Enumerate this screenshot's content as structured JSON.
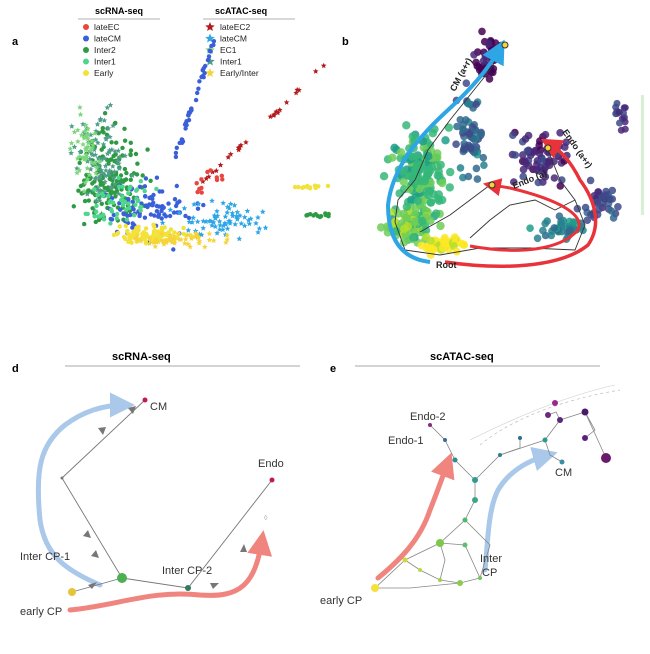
{
  "panels": {
    "a": {
      "label": "a"
    },
    "b": {
      "label": "b"
    },
    "d": {
      "label": "d"
    },
    "e": {
      "label": "e"
    }
  },
  "legend": {
    "scrna_title": "scRNA-seq",
    "scatac_title": "scATAC-seq",
    "scrna_items": [
      {
        "label": "lateEC",
        "color": "#e8473f"
      },
      {
        "label": "lateCM",
        "color": "#3a5fd9"
      },
      {
        "label": "Inter2",
        "color": "#2e9a44"
      },
      {
        "label": "Inter1",
        "color": "#4fd68c"
      },
      {
        "label": "Early",
        "color": "#f2e23a"
      }
    ],
    "scatac_items": [
      {
        "label": "lateEC2",
        "color": "#b31b1b"
      },
      {
        "label": "lateCM",
        "color": "#2ea6e6"
      },
      {
        "label": "EC1",
        "color": "#7cd67a"
      },
      {
        "label": "Inter1",
        "color": "#4f9d8a"
      },
      {
        "label": "Early/Inter",
        "color": "#f5d33a"
      }
    ]
  },
  "panel_b": {
    "cm_label": "CM (a+r)",
    "endo_a_label": "Endo (a)",
    "endo_ar_label": "Endo (a+r)",
    "root_label": "Root"
  },
  "panel_d": {
    "title": "scRNA-seq",
    "labels": {
      "cm": "CM",
      "endo": "Endo",
      "inter1": "Inter CP-1",
      "inter2": "Inter CP-2",
      "early": "early CP"
    }
  },
  "panel_e": {
    "title": "scATAC-seq",
    "labels": {
      "endo2": "Endo-2",
      "endo1": "Endo-1",
      "cm": "CM",
      "inter": "Inter\nCP",
      "early": "early CP"
    }
  },
  "colors": {
    "blue_arrow": "#a9c8ea",
    "red_arrow": "#f0857f",
    "cm_arrow_b": "#2ea6e6",
    "endo_arrow_b": "#e8333a"
  }
}
